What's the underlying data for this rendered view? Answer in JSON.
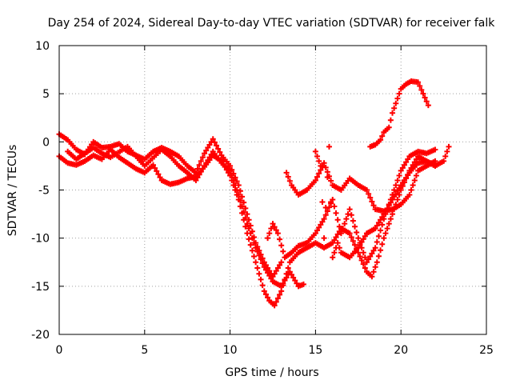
{
  "chart_data": {
    "type": "scatter",
    "title": "Day 254 of 2024, Sidereal Day-to-day VTEC variation (SDTVAR) for receiver falk",
    "xlabel": "GPS time / hours",
    "ylabel": "SDTVAR / TECUs",
    "xlim": [
      0,
      25
    ],
    "ylim": [
      -20,
      10
    ],
    "xticks": [
      "0",
      "5",
      "10",
      "15",
      "20",
      "25"
    ],
    "yticks": [
      "10",
      "5",
      "0",
      "-5",
      "-10",
      "-15",
      "-20"
    ],
    "grid": true,
    "marker": "plus",
    "color": "#ff0000",
    "series": [
      {
        "x": [
          0.0,
          0.5,
          1.0,
          1.5,
          2.0,
          2.5,
          3.0,
          3.5,
          4.0,
          4.5,
          5.0,
          5.5,
          6.0,
          6.5,
          7.0,
          7.5,
          8.0,
          8.5,
          9.0,
          9.5,
          10.0,
          10.5,
          11.0,
          11.5,
          12.0,
          12.3,
          12.6,
          13.0,
          13.5,
          14.0,
          14.5,
          15.0,
          15.5,
          16.0,
          16.5,
          17.0,
          17.5,
          18.0,
          18.3,
          18.6,
          19.0,
          19.5,
          20.0,
          20.5,
          21.0,
          21.5,
          22.0,
          22.5,
          22.8
        ],
        "y": [
          -1.5,
          -2.2,
          -2.4,
          -2.0,
          -1.4,
          -1.8,
          -0.8,
          -1.6,
          -2.2,
          -2.8,
          -3.2,
          -2.4,
          -4.0,
          -4.4,
          -4.2,
          -3.8,
          -3.6,
          -2.6,
          -1.4,
          -2.0,
          -3.5,
          -6.0,
          -9.5,
          -12.5,
          -15.5,
          -16.5,
          -17.0,
          -15.5,
          -12.5,
          -11.5,
          -11.0,
          -10.5,
          -11.0,
          -10.5,
          -9.0,
          -9.5,
          -11.5,
          -13.5,
          -14.0,
          -12.5,
          -10.0,
          -7.5,
          -5.0,
          -3.0,
          -1.5,
          -2.0,
          -2.5,
          -2.0,
          -0.5
        ]
      },
      {
        "x": [
          0.0,
          0.5,
          1.0,
          1.5,
          2.0,
          2.5,
          3.0,
          3.5,
          4.0,
          4.5,
          5.0,
          5.5,
          6.0,
          6.5,
          7.0,
          7.5,
          8.0,
          8.5,
          9.0,
          9.5,
          10.0,
          10.5,
          11.0,
          11.5,
          12.0,
          12.5,
          13.0
        ],
        "y": [
          0.8,
          0.2,
          -0.8,
          -1.3,
          0.0,
          -0.6,
          -0.5,
          -0.2,
          -1.0,
          -1.4,
          -1.8,
          -1.0,
          -0.6,
          -1.0,
          -1.5,
          -2.5,
          -3.2,
          -1.2,
          0.3,
          -1.4,
          -2.5,
          -4.5,
          -7.5,
          -10.5,
          -12.5,
          -14.0,
          -12.5
        ]
      },
      {
        "x": [
          0.5,
          1.0,
          1.5,
          2.0,
          2.5,
          3.0,
          4.0,
          4.5,
          5.0,
          6.0,
          6.5,
          7.0,
          7.5,
          8.0,
          8.5,
          9.0,
          9.5,
          10.0,
          10.5,
          11.0,
          11.5,
          12.0,
          12.5,
          13.0,
          13.5,
          14.0,
          14.3
        ],
        "y": [
          -1.0,
          -1.8,
          -1.2,
          -0.6,
          -1.2,
          -1.6,
          -0.5,
          -1.5,
          -2.5,
          -0.8,
          -1.5,
          -2.5,
          -3.2,
          -4.0,
          -2.5,
          -1.0,
          -2.2,
          -3.0,
          -5.5,
          -8.5,
          -11.0,
          -13.0,
          -14.5,
          -15.0,
          -13.5,
          -15.0,
          -14.8
        ]
      },
      {
        "x": [
          12.2,
          12.5,
          12.8,
          13.2,
          13.6,
          14.0,
          14.5,
          15.0,
          15.5,
          16.0,
          16.5,
          17.0,
          17.5,
          18.0,
          18.5,
          19.0,
          19.5,
          20.0,
          20.5,
          21.0,
          21.5,
          22.0
        ],
        "y": [
          -10.0,
          -8.5,
          -9.5,
          -12.0,
          -11.5,
          -10.8,
          -10.5,
          -9.5,
          -8.0,
          -6.0,
          -9.5,
          -7.0,
          -10.0,
          -12.5,
          -11.0,
          -8.0,
          -5.5,
          -3.0,
          -1.5,
          -1.0,
          -1.2,
          -0.8
        ]
      },
      {
        "x": [
          13.3,
          13.6,
          14.0,
          14.5,
          15.0,
          15.5,
          16.0,
          16.5,
          17.0,
          17.5,
          18.0,
          18.5,
          19.0,
          19.5,
          20.0,
          20.5,
          21.0,
          21.5,
          22.0
        ],
        "y": [
          -3.2,
          -4.5,
          -5.5,
          -5.0,
          -4.0,
          -2.2,
          -4.5,
          -5.0,
          -3.8,
          -4.5,
          -5.0,
          -7.0,
          -7.2,
          -7.0,
          -6.5,
          -5.5,
          -3.0,
          -2.5,
          -2.0
        ]
      },
      {
        "x": [
          15.0,
          15.3,
          15.5,
          15.8,
          16.0,
          16.3,
          16.5,
          17.0,
          17.5,
          18.0,
          18.5,
          19.0,
          19.5,
          20.0,
          20.5,
          21.0,
          21.5,
          22.0
        ],
        "y": [
          -1.0,
          -2.5,
          -10.0,
          -0.5,
          -12.0,
          -10.5,
          -11.5,
          -12.0,
          -11.0,
          -9.5,
          -9.0,
          -7.5,
          -6.0,
          -4.5,
          -3.2,
          -2.2,
          -2.0,
          -2.5
        ]
      },
      {
        "x": [
          18.2,
          18.5,
          18.8,
          19.0,
          19.3,
          19.5,
          19.8,
          20.0,
          20.3,
          20.6,
          21.0,
          21.3,
          21.6
        ],
        "y": [
          -0.5,
          -0.3,
          0.2,
          1.0,
          1.5,
          3.0,
          4.5,
          5.5,
          6.0,
          6.3,
          6.2,
          5.0,
          3.8
        ]
      }
    ]
  }
}
